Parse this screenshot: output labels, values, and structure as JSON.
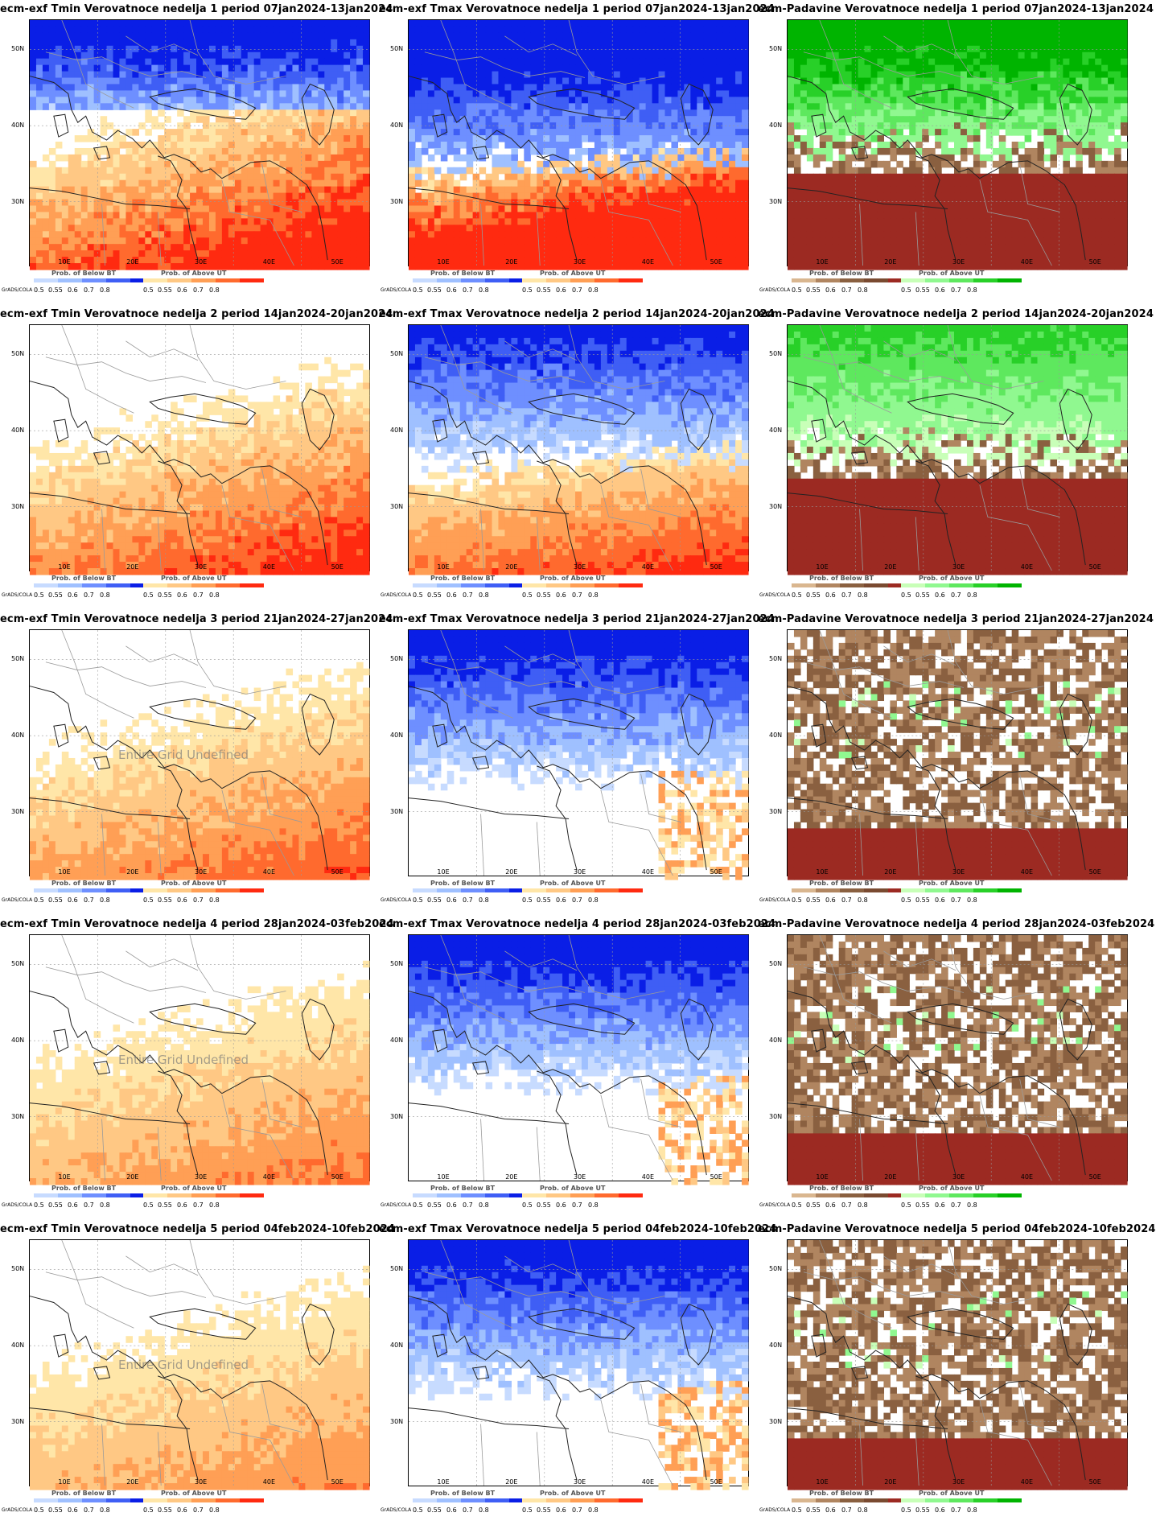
{
  "colors": {
    "below_bt": [
      "#c7dbff",
      "#9fc0ff",
      "#6e8fff",
      "#3f5ef5",
      "#0a1ee6"
    ],
    "above_ut": [
      "#ffe6a8",
      "#ffc884",
      "#ff9f55",
      "#ff6a2e",
      "#ff2a10"
    ],
    "below_p": [
      "#d9b68f",
      "#b08560",
      "#8a6040",
      "#7a4a30",
      "#9c2a22"
    ],
    "above_p": [
      "#c8ffb8",
      "#90f890",
      "#5ee85e",
      "#28d028",
      "#00b400"
    ]
  },
  "legend_common": {
    "grads_label": "GrADS/COLA",
    "ticks": [
      "0.5",
      "0.55",
      "0.6",
      "0.7",
      "0.8"
    ]
  },
  "legend_temp": {
    "below_label": "Prob. of Below BT",
    "above_label": "Prob. of Above UT"
  },
  "legend_precip": {
    "below_label": "Prob. of Below BT",
    "above_label": "Prob. of Above UT"
  },
  "axis": {
    "lat_labels": [
      "50N",
      "40N",
      "30N"
    ],
    "lon_labels": [
      "10E",
      "20E",
      "30E",
      "40E",
      "50E"
    ]
  },
  "undefined_text": "Entire Grid Undefined",
  "panels": [
    {
      "title": "ecm-exf Tmin Verovatnoce nedelja 1 period 07jan2024-13jan2024",
      "kind": "tmin",
      "week": 1,
      "undefined": false
    },
    {
      "title": "ecm-exf Tmax Verovatnoce nedelja 1 period 07jan2024-13jan2024",
      "kind": "tmax",
      "week": 1,
      "undefined": false
    },
    {
      "title": "ecm-Padavine Verovatnoce nedelja 1 period 07jan2024-13jan2024",
      "kind": "precip",
      "week": 1,
      "undefined": false
    },
    {
      "title": "ecm-exf Tmin Verovatnoce nedelja 2 period 14jan2024-20jan2024",
      "kind": "tmin",
      "week": 2,
      "undefined": false
    },
    {
      "title": "ecm-exf Tmax Verovatnoce nedelja 2 period 14jan2024-20jan2024",
      "kind": "tmax",
      "week": 2,
      "undefined": false
    },
    {
      "title": "ecm-Padavine Verovatnoce nedelja 2 period 14jan2024-20jan2024",
      "kind": "precip",
      "week": 2,
      "undefined": false
    },
    {
      "title": "ecm-exf Tmin Verovatnoce nedelja 3 period 21jan2024-27jan2024",
      "kind": "tmin",
      "week": 3,
      "undefined": true
    },
    {
      "title": "ecm-exf Tmax Verovatnoce nedelja 3 period 21jan2024-27jan2024",
      "kind": "tmax",
      "week": 3,
      "undefined": false
    },
    {
      "title": "ecm-Padavine Verovatnoce nedelja 3 period 21jan2024-27jan2024",
      "kind": "precip",
      "week": 3,
      "undefined": false
    },
    {
      "title": "ecm-exf Tmin Verovatnoce nedelja 4 period 28jan2024-03feb2024",
      "kind": "tmin",
      "week": 4,
      "undefined": true
    },
    {
      "title": "ecm-exf Tmax Verovatnoce nedelja 4 period 28jan2024-03feb2024",
      "kind": "tmax",
      "week": 4,
      "undefined": false
    },
    {
      "title": "ecm-Padavine Verovatnoce nedelja 4 period 28jan2024-03feb2024",
      "kind": "precip",
      "week": 4,
      "undefined": false
    },
    {
      "title": "ecm-exf Tmin Verovatnoce nedelja 5 period 04feb2024-10feb2024",
      "kind": "tmin",
      "week": 5,
      "undefined": true
    },
    {
      "title": "ecm-exf Tmax Verovatnoce nedelja 5 period 04feb2024-10feb2024",
      "kind": "tmax",
      "week": 5,
      "undefined": false
    },
    {
      "title": "ecm-Padavine Verovatnoce nedelja 5 period 04feb2024-10feb2024",
      "kind": "precip",
      "week": 5,
      "undefined": false
    }
  ]
}
